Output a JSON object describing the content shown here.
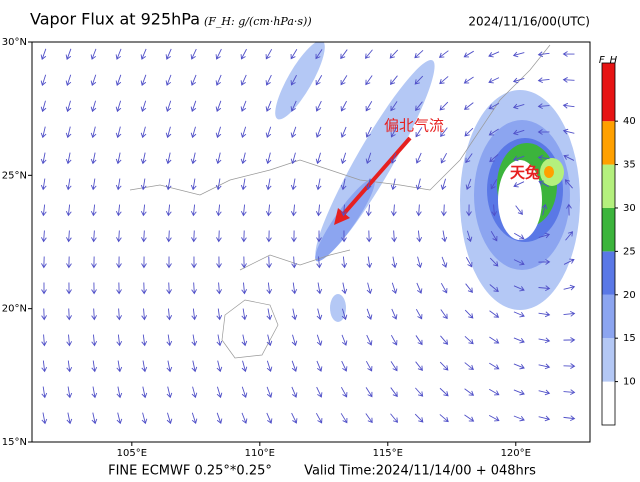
{
  "header": {
    "title": "Vapor Flux at 925hPa",
    "units": "(F_H: g/(cm·hPa·s))",
    "time": "2024/11/16/00(UTC)"
  },
  "map": {
    "lon_range": [
      101.1,
      122.9
    ],
    "lat_range": [
      15,
      30
    ],
    "lat_ticks": [
      {
        "value": 30,
        "label": "30°N"
      },
      {
        "value": 25,
        "label": "25°N"
      },
      {
        "value": 20,
        "label": "20°N"
      },
      {
        "value": 15,
        "label": "15°N"
      }
    ],
    "lon_ticks": [
      {
        "value": 105,
        "label": "105°E"
      },
      {
        "value": 110,
        "label": "110°E"
      },
      {
        "value": 115,
        "label": "115°E"
      },
      {
        "value": 120,
        "label": "120°E"
      }
    ],
    "annotations": {
      "flow": "偏北气流",
      "typhoon": "天兔"
    }
  },
  "colorbar": {
    "label": "F_H",
    "range": [
      5,
      46.7
    ],
    "levels": [
      10,
      15,
      20,
      25,
      30,
      35,
      40
    ],
    "colors": [
      "#ffffff",
      "#b4c8f5",
      "#8ca5f0",
      "#5a78e6",
      "#3cb43c",
      "#b4f07d",
      "#ffa000",
      "#e61414"
    ]
  },
  "footer": {
    "model": "FINE ECMWF 0.25°*0.25°",
    "valid": "Valid Time:2024/11/14/00 + 048hrs"
  }
}
